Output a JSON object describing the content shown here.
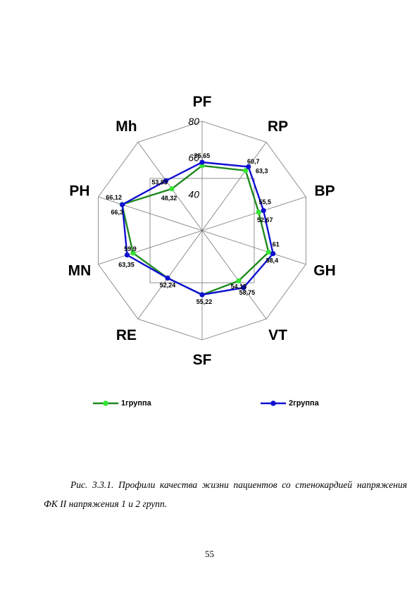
{
  "chart_data": {
    "type": "radar",
    "axes": [
      "PF",
      "RP",
      "BP",
      "GH",
      "VT",
      "SF",
      "RE",
      "MN",
      "PH",
      "Mh"
    ],
    "rlim": [
      20,
      80
    ],
    "ticks": [
      40,
      60,
      80
    ],
    "series": [
      {
        "name": "1группа",
        "color": "#33e633",
        "line_color": "#1f8a1f",
        "values": [
          55.65,
          60.7,
          52.67,
          58.4,
          54.15,
          55.22,
          52.24,
          59.9,
          66.3,
          48.32
        ],
        "value_labels": [
          "55,65",
          "60,7",
          "52,67",
          "58,4",
          "54,15",
          "55,22",
          "52,24",
          "59,9",
          "66,3",
          "48,32"
        ]
      },
      {
        "name": "2группа",
        "color": "#1010d0",
        "line_color": "#1010d0",
        "values": [
          57.5,
          63.3,
          55.5,
          61.0,
          58.75,
          55.22,
          52.24,
          63.35,
          66.12,
          53.83
        ],
        "value_labels": [
          "",
          "63,3",
          "55,5",
          "61",
          "58,75",
          "",
          "",
          "63,35",
          "66,12",
          "53,83"
        ]
      }
    ]
  },
  "caption": {
    "line1": "Рис. 3.3.1. Профили качества жизни пациентов со стенокардией напряжения",
    "line2": "ФК II  напряжения 1 и 2 групп."
  },
  "page_number": "55"
}
